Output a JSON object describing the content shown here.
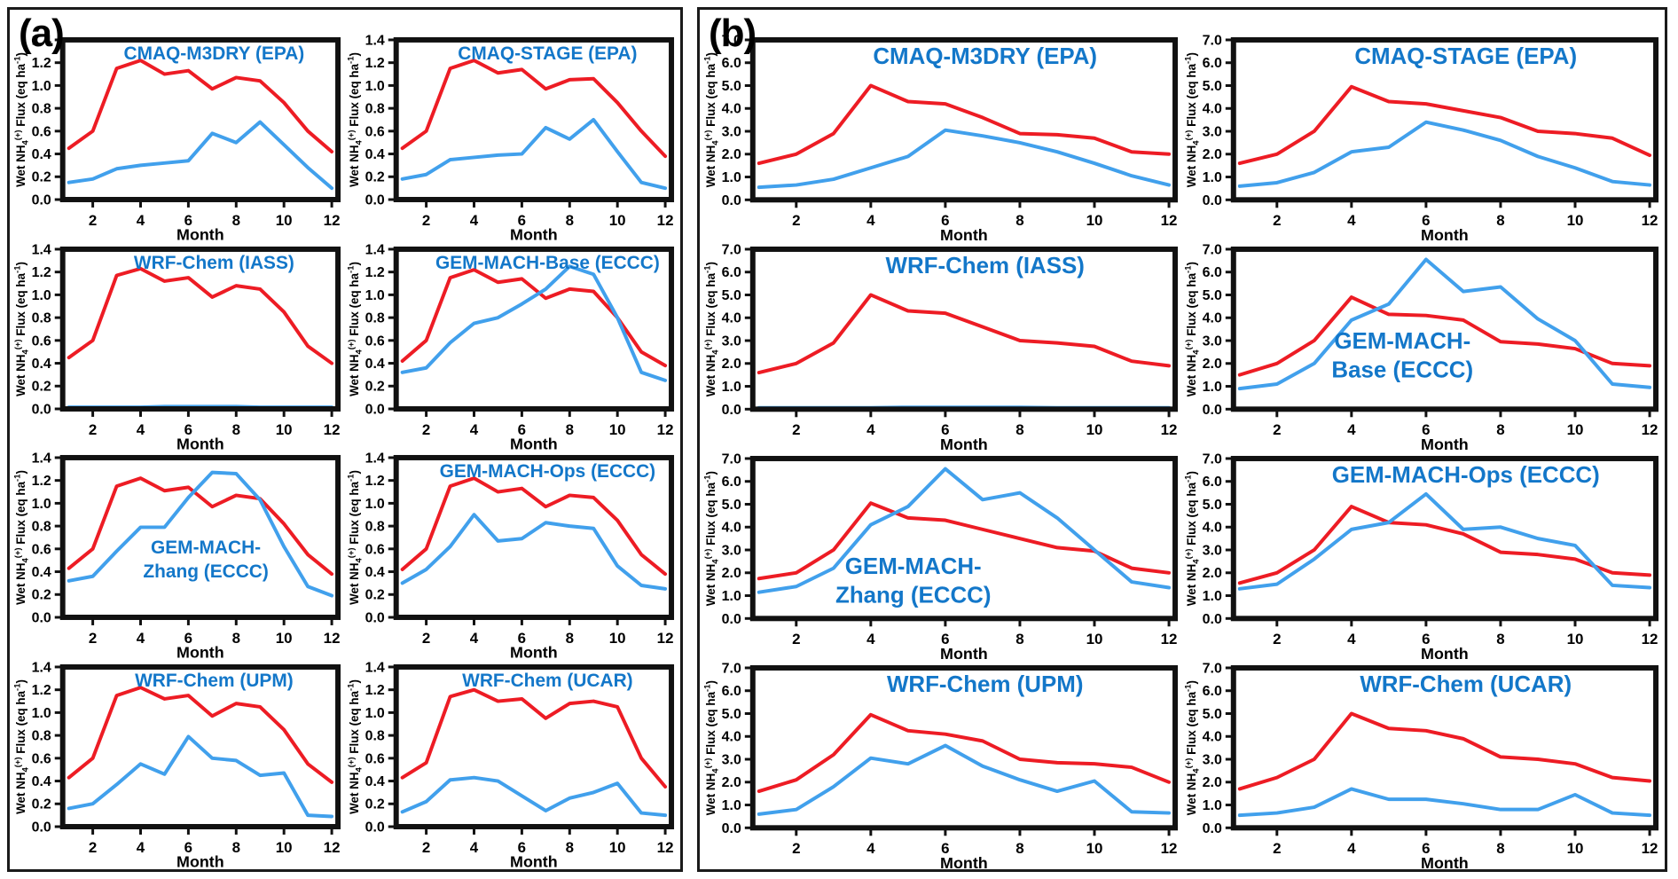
{
  "figure": {
    "panels": [
      {
        "label": "(a)",
        "ylim": [
          0,
          1.4
        ],
        "ytick_step": 0.2,
        "ytick_decimals": 1
      },
      {
        "label": "(b)",
        "ylim": [
          0,
          7.0
        ],
        "ytick_step": 1.0,
        "ytick_decimals": 1
      }
    ]
  },
  "axes": {
    "xlabel": "Month",
    "xticks": [
      2,
      4,
      6,
      8,
      10,
      12
    ],
    "ylabel_parts": {
      "prefix": "Wet NH",
      "sub": "4",
      "sup": "(+)",
      "mid": " Flux (eq ha",
      "sup2": "-1",
      "suffix": ")"
    }
  },
  "colors": {
    "red_line": "#ed1c24",
    "blue_line": "#41a0ec",
    "title_blue": "#1377c9",
    "frame_black": "#111111"
  },
  "chart_data": [
    {
      "panel": "a",
      "type": "line",
      "title": "CMAQ-M3DRY (EPA)",
      "title_lines": [
        "CMAQ-M3DRY (EPA)"
      ],
      "title_layout": "top",
      "xlabel": "Month",
      "ylabel": "Wet NH4(+) Flux (eq ha-1)",
      "ylim": [
        0,
        1.4
      ],
      "x": [
        1,
        2,
        3,
        4,
        5,
        6,
        7,
        8,
        9,
        10,
        11,
        12
      ],
      "series": [
        {
          "name": "red",
          "values": [
            0.45,
            0.6,
            1.15,
            1.22,
            1.1,
            1.13,
            0.97,
            1.07,
            1.04,
            0.85,
            0.6,
            0.42
          ]
        },
        {
          "name": "blue",
          "values": [
            0.15,
            0.18,
            0.27,
            0.3,
            0.32,
            0.34,
            0.58,
            0.5,
            0.68,
            0.48,
            0.28,
            0.1
          ]
        }
      ]
    },
    {
      "panel": "a",
      "type": "line",
      "title": "CMAQ-STAGE (EPA)",
      "title_lines": [
        "CMAQ-STAGE (EPA)"
      ],
      "title_layout": "top",
      "xlabel": "Month",
      "ylabel": "Wet NH4(+) Flux (eq ha-1)",
      "ylim": [
        0,
        1.4
      ],
      "x": [
        1,
        2,
        3,
        4,
        5,
        6,
        7,
        8,
        9,
        10,
        11,
        12
      ],
      "series": [
        {
          "name": "red",
          "values": [
            0.45,
            0.6,
            1.15,
            1.22,
            1.11,
            1.14,
            0.97,
            1.05,
            1.06,
            0.85,
            0.6,
            0.38
          ]
        },
        {
          "name": "blue",
          "values": [
            0.18,
            0.22,
            0.35,
            0.37,
            0.39,
            0.4,
            0.63,
            0.53,
            0.7,
            0.42,
            0.15,
            0.1
          ]
        }
      ]
    },
    {
      "panel": "a",
      "type": "line",
      "title": "WRF-Chem (IASS)",
      "title_lines": [
        "WRF-Chem (IASS)"
      ],
      "title_layout": "top",
      "xlabel": "Month",
      "ylabel": "Wet NH4(+) Flux (eq ha-1)",
      "ylim": [
        0,
        1.4
      ],
      "x": [
        1,
        2,
        3,
        4,
        5,
        6,
        7,
        8,
        9,
        10,
        11,
        12
      ],
      "series": [
        {
          "name": "red",
          "values": [
            0.45,
            0.6,
            1.17,
            1.23,
            1.12,
            1.15,
            0.98,
            1.08,
            1.05,
            0.85,
            0.55,
            0.4
          ]
        },
        {
          "name": "blue",
          "values": [
            0.015,
            0.015,
            0.015,
            0.015,
            0.02,
            0.02,
            0.02,
            0.02,
            0.015,
            0.015,
            0.015,
            0.015
          ]
        }
      ]
    },
    {
      "panel": "a",
      "type": "line",
      "title": "GEM-MACH-Base (ECCC)",
      "title_lines": [
        "GEM-MACH-Base (ECCC)"
      ],
      "title_layout": "top",
      "xlabel": "Month",
      "ylabel": "Wet NH4(+) Flux (eq ha-1)",
      "ylim": [
        0,
        1.4
      ],
      "x": [
        1,
        2,
        3,
        4,
        5,
        6,
        7,
        8,
        9,
        10,
        11,
        12
      ],
      "series": [
        {
          "name": "red",
          "values": [
            0.42,
            0.6,
            1.15,
            1.22,
            1.11,
            1.14,
            0.97,
            1.05,
            1.03,
            0.8,
            0.5,
            0.38
          ]
        },
        {
          "name": "blue",
          "values": [
            0.32,
            0.36,
            0.58,
            0.75,
            0.8,
            0.92,
            1.05,
            1.25,
            1.18,
            0.8,
            0.32,
            0.25
          ]
        }
      ]
    },
    {
      "panel": "a",
      "type": "line",
      "title": "GEM-MACH-Zhang (ECCC)",
      "title_lines": [
        "GEM-MACH-",
        "Zhang (ECCC)"
      ],
      "title_layout": "middle",
      "xlabel": "Month",
      "ylabel": "Wet NH4(+) Flux (eq ha-1)",
      "ylim": [
        0,
        1.4
      ],
      "x": [
        1,
        2,
        3,
        4,
        5,
        6,
        7,
        8,
        9,
        10,
        11,
        12
      ],
      "series": [
        {
          "name": "red",
          "values": [
            0.43,
            0.6,
            1.15,
            1.22,
            1.11,
            1.14,
            0.97,
            1.07,
            1.04,
            0.82,
            0.55,
            0.38
          ]
        },
        {
          "name": "blue",
          "values": [
            0.32,
            0.36,
            0.58,
            0.79,
            0.79,
            1.05,
            1.27,
            1.26,
            1.03,
            0.62,
            0.27,
            0.19
          ]
        }
      ]
    },
    {
      "panel": "a",
      "type": "line",
      "title": "GEM-MACH-Ops (ECCC)",
      "title_lines": [
        "GEM-MACH-Ops (ECCC)"
      ],
      "title_layout": "top",
      "xlabel": "Month",
      "ylabel": "Wet NH4(+) Flux (eq ha-1)",
      "ylim": [
        0,
        1.4
      ],
      "x": [
        1,
        2,
        3,
        4,
        5,
        6,
        7,
        8,
        9,
        10,
        11,
        12
      ],
      "series": [
        {
          "name": "red",
          "values": [
            0.42,
            0.6,
            1.15,
            1.22,
            1.1,
            1.13,
            0.97,
            1.07,
            1.05,
            0.85,
            0.55,
            0.38
          ]
        },
        {
          "name": "blue",
          "values": [
            0.3,
            0.42,
            0.62,
            0.9,
            0.67,
            0.69,
            0.83,
            0.8,
            0.78,
            0.45,
            0.28,
            0.25
          ]
        }
      ]
    },
    {
      "panel": "a",
      "type": "line",
      "title": "WRF-Chem (UPM)",
      "title_lines": [
        "WRF-Chem (UPM)"
      ],
      "title_layout": "top",
      "xlabel": "Month",
      "ylabel": "Wet NH4(+) Flux (eq ha-1)",
      "ylim": [
        0,
        1.4
      ],
      "x": [
        1,
        2,
        3,
        4,
        5,
        6,
        7,
        8,
        9,
        10,
        11,
        12
      ],
      "series": [
        {
          "name": "red",
          "values": [
            0.43,
            0.6,
            1.15,
            1.22,
            1.12,
            1.15,
            0.97,
            1.08,
            1.05,
            0.85,
            0.55,
            0.39
          ]
        },
        {
          "name": "blue",
          "values": [
            0.16,
            0.2,
            0.37,
            0.55,
            0.46,
            0.79,
            0.6,
            0.58,
            0.45,
            0.47,
            0.1,
            0.09
          ]
        }
      ]
    },
    {
      "panel": "a",
      "type": "line",
      "title": "WRF-Chem (UCAR)",
      "title_lines": [
        "WRF-Chem (UCAR)"
      ],
      "title_layout": "top",
      "xlabel": "Month",
      "ylabel": "Wet NH4(+) Flux (eq ha-1)",
      "ylim": [
        0,
        1.4
      ],
      "x": [
        1,
        2,
        3,
        4,
        5,
        6,
        7,
        8,
        9,
        10,
        11,
        12
      ],
      "series": [
        {
          "name": "red",
          "values": [
            0.43,
            0.56,
            1.14,
            1.2,
            1.1,
            1.12,
            0.95,
            1.08,
            1.1,
            1.05,
            0.6,
            0.35
          ]
        },
        {
          "name": "blue",
          "values": [
            0.13,
            0.22,
            0.41,
            0.43,
            0.4,
            0.27,
            0.14,
            0.25,
            0.3,
            0.38,
            0.12,
            0.1
          ]
        }
      ]
    },
    {
      "panel": "b",
      "type": "line",
      "title": "CMAQ-M3DRY (EPA)",
      "title_lines": [
        "CMAQ-M3DRY (EPA)"
      ],
      "title_layout": "top",
      "xlabel": "Month",
      "ylabel": "Wet NH4(+) Flux (eq ha-1)",
      "ylim": [
        0,
        7.0
      ],
      "x": [
        1,
        2,
        3,
        4,
        5,
        6,
        7,
        8,
        9,
        10,
        11,
        12
      ],
      "series": [
        {
          "name": "red",
          "values": [
            1.6,
            2.0,
            2.9,
            5.0,
            4.3,
            4.2,
            3.6,
            2.9,
            2.85,
            2.7,
            2.1,
            2.0
          ]
        },
        {
          "name": "blue",
          "values": [
            0.55,
            0.65,
            0.9,
            1.4,
            1.9,
            3.05,
            2.8,
            2.5,
            2.1,
            1.6,
            1.05,
            0.65
          ]
        }
      ]
    },
    {
      "panel": "b",
      "type": "line",
      "title": "CMAQ-STAGE (EPA)",
      "title_lines": [
        "CMAQ-STAGE (EPA)"
      ],
      "title_layout": "top",
      "xlabel": "Month",
      "ylabel": "Wet NH4(+) Flux (eq ha-1)",
      "ylim": [
        0,
        7.0
      ],
      "x": [
        1,
        2,
        3,
        4,
        5,
        6,
        7,
        8,
        9,
        10,
        11,
        12
      ],
      "series": [
        {
          "name": "red",
          "values": [
            1.6,
            2.0,
            3.0,
            4.95,
            4.3,
            4.2,
            3.9,
            3.6,
            3.0,
            2.9,
            2.7,
            1.95
          ]
        },
        {
          "name": "blue",
          "values": [
            0.6,
            0.75,
            1.2,
            2.1,
            2.3,
            3.4,
            3.05,
            2.6,
            1.9,
            1.4,
            0.8,
            0.65
          ]
        }
      ]
    },
    {
      "panel": "b",
      "type": "line",
      "title": "WRF-Chem (IASS)",
      "title_lines": [
        "WRF-Chem (IASS)"
      ],
      "title_layout": "top",
      "xlabel": "Month",
      "ylabel": "Wet NH4(+) Flux (eq ha-1)",
      "ylim": [
        0,
        7.0
      ],
      "x": [
        1,
        2,
        3,
        4,
        5,
        6,
        7,
        8,
        9,
        10,
        11,
        12
      ],
      "series": [
        {
          "name": "red",
          "values": [
            1.6,
            2.0,
            2.9,
            5.0,
            4.3,
            4.2,
            3.6,
            3.0,
            2.9,
            2.75,
            2.1,
            1.9
          ]
        },
        {
          "name": "blue",
          "values": [
            0.06,
            0.06,
            0.06,
            0.06,
            0.08,
            0.08,
            0.08,
            0.08,
            0.06,
            0.06,
            0.06,
            0.06
          ]
        }
      ]
    },
    {
      "panel": "b",
      "type": "line",
      "title": "GEM-MACH-Base (ECCC)",
      "title_lines": [
        "GEM-MACH-",
        "Base (ECCC)"
      ],
      "title_layout": "mid-left",
      "xlabel": "Month",
      "ylabel": "Wet NH4(+) Flux (eq ha-1)",
      "ylim": [
        0,
        7.0
      ],
      "x": [
        1,
        2,
        3,
        4,
        5,
        6,
        7,
        8,
        9,
        10,
        11,
        12
      ],
      "series": [
        {
          "name": "red",
          "values": [
            1.5,
            2.0,
            3.0,
            4.9,
            4.15,
            4.1,
            3.9,
            2.95,
            2.85,
            2.65,
            2.0,
            1.9
          ]
        },
        {
          "name": "blue",
          "values": [
            0.9,
            1.1,
            2.0,
            3.9,
            4.6,
            6.55,
            5.15,
            5.35,
            3.95,
            3.0,
            1.1,
            0.95
          ]
        }
      ]
    },
    {
      "panel": "b",
      "type": "line",
      "title": "GEM-MACH-Zhang (ECCC)",
      "title_lines": [
        "GEM-MACH-",
        "Zhang (ECCC)"
      ],
      "title_layout": "low-left",
      "xlabel": "Month",
      "ylabel": "Wet NH4(+) Flux (eq ha-1)",
      "ylim": [
        0,
        7.0
      ],
      "x": [
        1,
        2,
        3,
        4,
        5,
        6,
        7,
        8,
        9,
        10,
        11,
        12
      ],
      "series": [
        {
          "name": "red",
          "values": [
            1.75,
            2.0,
            3.0,
            5.05,
            4.4,
            4.3,
            3.9,
            3.5,
            3.1,
            2.95,
            2.2,
            2.0
          ]
        },
        {
          "name": "blue",
          "values": [
            1.15,
            1.4,
            2.2,
            4.1,
            4.9,
            6.55,
            5.2,
            5.5,
            4.4,
            3.0,
            1.6,
            1.35
          ]
        }
      ]
    },
    {
      "panel": "b",
      "type": "line",
      "title": "GEM-MACH-Ops (ECCC)",
      "title_lines": [
        "GEM-MACH-Ops (ECCC)"
      ],
      "title_layout": "top",
      "xlabel": "Month",
      "ylabel": "Wet NH4(+) Flux (eq ha-1)",
      "ylim": [
        0,
        7.0
      ],
      "x": [
        1,
        2,
        3,
        4,
        5,
        6,
        7,
        8,
        9,
        10,
        11,
        12
      ],
      "series": [
        {
          "name": "red",
          "values": [
            1.55,
            2.0,
            3.0,
            4.9,
            4.2,
            4.1,
            3.7,
            2.9,
            2.8,
            2.6,
            2.0,
            1.9
          ]
        },
        {
          "name": "blue",
          "values": [
            1.3,
            1.5,
            2.6,
            3.9,
            4.2,
            5.45,
            3.9,
            4.0,
            3.5,
            3.2,
            1.45,
            1.35
          ]
        }
      ]
    },
    {
      "panel": "b",
      "type": "line",
      "title": "WRF-Chem (UPM)",
      "title_lines": [
        "WRF-Chem (UPM)"
      ],
      "title_layout": "top",
      "xlabel": "Month",
      "ylabel": "Wet NH4(+) Flux (eq ha-1)",
      "ylim": [
        0,
        7.0
      ],
      "x": [
        1,
        2,
        3,
        4,
        5,
        6,
        7,
        8,
        9,
        10,
        11,
        12
      ],
      "series": [
        {
          "name": "red",
          "values": [
            1.6,
            2.1,
            3.2,
            4.95,
            4.25,
            4.1,
            3.8,
            3.0,
            2.85,
            2.8,
            2.65,
            2.0
          ]
        },
        {
          "name": "blue",
          "values": [
            0.6,
            0.8,
            1.8,
            3.05,
            2.8,
            3.6,
            2.7,
            2.1,
            1.6,
            2.05,
            0.7,
            0.65
          ]
        }
      ]
    },
    {
      "panel": "b",
      "type": "line",
      "title": "WRF-Chem (UCAR)",
      "title_lines": [
        "WRF-Chem (UCAR)"
      ],
      "title_layout": "top",
      "xlabel": "Month",
      "ylabel": "Wet NH4(+) Flux (eq ha-1)",
      "ylim": [
        0,
        7.0
      ],
      "x": [
        1,
        2,
        3,
        4,
        5,
        6,
        7,
        8,
        9,
        10,
        11,
        12
      ],
      "series": [
        {
          "name": "red",
          "values": [
            1.7,
            2.2,
            3.0,
            5.0,
            4.35,
            4.25,
            3.9,
            3.1,
            3.0,
            2.8,
            2.2,
            2.05
          ]
        },
        {
          "name": "blue",
          "values": [
            0.55,
            0.65,
            0.9,
            1.7,
            1.25,
            1.25,
            1.05,
            0.8,
            0.8,
            1.45,
            0.65,
            0.55
          ]
        }
      ]
    }
  ]
}
